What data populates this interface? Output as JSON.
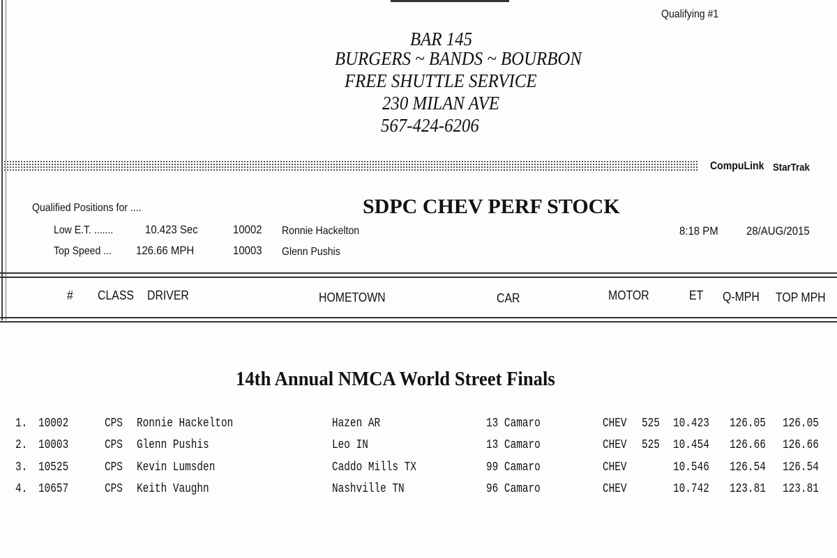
{
  "qualifying_label": "Qualifying #1",
  "ad": {
    "lines": [
      "BAR 145",
      "BURGERS ~ BANDS ~ BOURBON",
      "FREE SHUTTLE SERVICE",
      "230 MILAN AVE",
      "567-424-6206"
    ]
  },
  "brand": {
    "compulink": "CompuLink",
    "startrak": "StarTrak"
  },
  "qualified": {
    "label": "Qualified Positions for ....",
    "low_et": {
      "label": "Low E.T. .......",
      "value": "10.423 Sec",
      "id": "10002",
      "driver": "Ronnie Hackelton"
    },
    "top_speed": {
      "label": "Top Speed ...",
      "value": "126.66 MPH",
      "id": "10003",
      "driver": "Glenn Pushis"
    }
  },
  "class_title": "SDPC CHEV PERF STOCK",
  "time": "8:18 PM",
  "date": "28/AUG/2015",
  "columns": [
    "#",
    "CLASS",
    "DRIVER",
    "HOMETOWN",
    "CAR",
    "MOTOR",
    "ET",
    "Q-MPH",
    "TOP MPH"
  ],
  "event_title": "14th Annual NMCA World Street Finals",
  "rows": [
    {
      "pos": "1.",
      "num": "10002",
      "class": "CPS",
      "driver": "Ronnie Hackelton",
      "hometown": "Hazen AR",
      "car": "13 Camaro",
      "motor": "CHEV",
      "cid": "525",
      "et": "10.423",
      "qmph": "126.05",
      "topmph": "126.05"
    },
    {
      "pos": "2.",
      "num": "10003",
      "class": "CPS",
      "driver": "Glenn Pushis",
      "hometown": "Leo IN",
      "car": "13 Camaro",
      "motor": "CHEV",
      "cid": "525",
      "et": "10.454",
      "qmph": "126.66",
      "topmph": "126.66"
    },
    {
      "pos": "3.",
      "num": "10525",
      "class": "CPS",
      "driver": "Kevin Lumsden",
      "hometown": "Caddo Mills TX",
      "car": "99 Camaro",
      "motor": "CHEV",
      "cid": "",
      "et": "10.546",
      "qmph": "126.54",
      "topmph": "126.54"
    },
    {
      "pos": "4.",
      "num": "10657",
      "class": "CPS",
      "driver": "Keith Vaughn",
      "hometown": "Nashville TN",
      "car": "96 Camaro",
      "motor": "CHEV",
      "cid": "",
      "et": "10.742",
      "qmph": "123.81",
      "topmph": "123.81"
    }
  ]
}
